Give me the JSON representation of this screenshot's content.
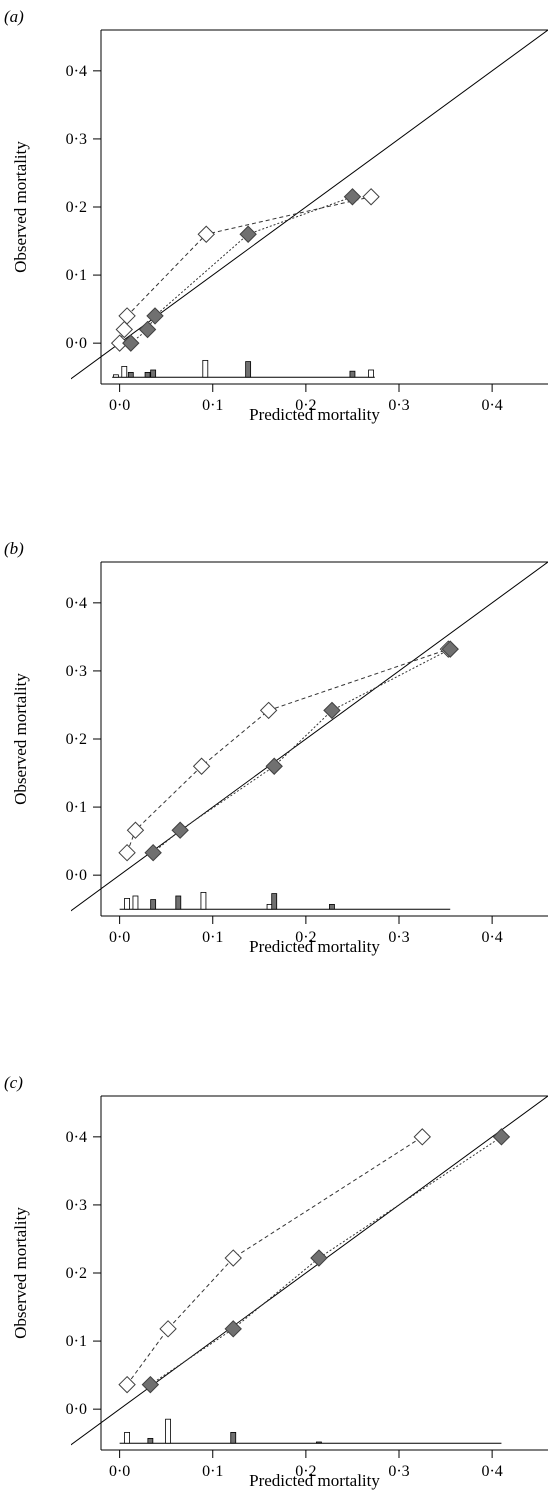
{
  "figure": {
    "x_axis_title": "Predicted mortality",
    "y_axis_title": "Observed mortality"
  },
  "colors": {
    "filled_marker": "#707070",
    "open_marker": "#ffffff",
    "marker_stroke": "#404040",
    "hist_filled": "#707070",
    "hist_open": "#ffffff",
    "line": "#000000"
  },
  "chart_data": [
    {
      "type": "scatter",
      "panel_label": "(a)",
      "xlabel": "Predicted mortality",
      "ylabel": "Observed mortality",
      "xlim": [
        -0.02,
        0.46
      ],
      "ylim": [
        -0.06,
        0.46
      ],
      "x_ticks": [
        "0·0",
        "0·1",
        "0·2",
        "0·3",
        "0·4"
      ],
      "y_ticks": [
        "0·0",
        "0·1",
        "0·2",
        "0·3",
        "0·4"
      ],
      "reference_line": "y = x",
      "series": [
        {
          "marker": "open diamond",
          "line": "dashed",
          "x": [
            0.0,
            0.005,
            0.008,
            0.093,
            0.27
          ],
          "y": [
            0.0,
            0.02,
            0.04,
            0.16,
            0.215
          ]
        },
        {
          "marker": "filled diamond",
          "line": "dotted",
          "x": [
            0.012,
            0.03,
            0.038,
            0.138,
            0.25
          ],
          "y": [
            0.0,
            0.02,
            0.04,
            0.16,
            0.215
          ]
        }
      ],
      "histogram": {
        "baseline_x": [
          -0.008,
          0.274
        ],
        "bars": [
          {
            "x": -0.004,
            "h": 0.1,
            "fill": "open"
          },
          {
            "x": 0.005,
            "h": 0.45,
            "fill": "open"
          },
          {
            "x": 0.012,
            "h": 0.2,
            "fill": "filled"
          },
          {
            "x": 0.03,
            "h": 0.2,
            "fill": "filled"
          },
          {
            "x": 0.036,
            "h": 0.3,
            "fill": "filled"
          },
          {
            "x": 0.092,
            "h": 0.7,
            "fill": "open"
          },
          {
            "x": 0.138,
            "h": 0.65,
            "fill": "filled"
          },
          {
            "x": 0.25,
            "h": 0.25,
            "fill": "filled"
          },
          {
            "x": 0.27,
            "h": 0.3,
            "fill": "open"
          }
        ]
      }
    },
    {
      "type": "scatter",
      "panel_label": "(b)",
      "xlabel": "Predicted mortality",
      "ylabel": "Observed mortality",
      "xlim": [
        -0.02,
        0.46
      ],
      "ylim": [
        -0.06,
        0.46
      ],
      "x_ticks": [
        "0·0",
        "0·1",
        "0·2",
        "0·3",
        "0·4"
      ],
      "y_ticks": [
        "0·0",
        "0·1",
        "0·2",
        "0·3",
        "0·4"
      ],
      "reference_line": "y = x",
      "series": [
        {
          "marker": "open diamond",
          "line": "dashed",
          "x": [
            0.008,
            0.017,
            0.088,
            0.16,
            0.353
          ],
          "y": [
            0.033,
            0.066,
            0.16,
            0.242,
            0.332
          ]
        },
        {
          "marker": "filled diamond",
          "line": "dotted",
          "x": [
            0.036,
            0.065,
            0.166,
            0.228,
            0.355
          ],
          "y": [
            0.033,
            0.066,
            0.16,
            0.242,
            0.332
          ]
        }
      ],
      "histogram": {
        "baseline_x": [
          0.0,
          0.355
        ],
        "bars": [
          {
            "x": 0.008,
            "h": 0.45,
            "fill": "open"
          },
          {
            "x": 0.017,
            "h": 0.55,
            "fill": "open"
          },
          {
            "x": 0.036,
            "h": 0.4,
            "fill": "filled"
          },
          {
            "x": 0.063,
            "h": 0.55,
            "fill": "filled"
          },
          {
            "x": 0.09,
            "h": 0.7,
            "fill": "open"
          },
          {
            "x": 0.161,
            "h": 0.2,
            "fill": "open"
          },
          {
            "x": 0.166,
            "h": 0.65,
            "fill": "filled"
          },
          {
            "x": 0.228,
            "h": 0.2,
            "fill": "filled"
          }
        ]
      }
    },
    {
      "type": "scatter",
      "panel_label": "(c)",
      "xlabel": "Predicted mortality",
      "ylabel": "Observed mortality",
      "xlim": [
        -0.02,
        0.46
      ],
      "ylim": [
        -0.06,
        0.46
      ],
      "x_ticks": [
        "0·0",
        "0·1",
        "0·2",
        "0·3",
        "0·4"
      ],
      "y_ticks": [
        "0·0",
        "0·1",
        "0·2",
        "0·3",
        "0·4"
      ],
      "reference_line": "y = x",
      "series": [
        {
          "marker": "open diamond",
          "line": "dashed",
          "x": [
            0.008,
            0.052,
            0.122,
            0.325
          ],
          "y": [
            0.036,
            0.118,
            0.222,
            0.4
          ]
        },
        {
          "marker": "filled diamond",
          "line": "dotted",
          "x": [
            0.033,
            0.122,
            0.214,
            0.41
          ],
          "y": [
            0.036,
            0.118,
            0.222,
            0.4
          ]
        }
      ],
      "histogram": {
        "baseline_x": [
          0.0,
          0.41
        ],
        "bars": [
          {
            "x": 0.008,
            "h": 0.45,
            "fill": "open"
          },
          {
            "x": 0.033,
            "h": 0.2,
            "fill": "filled"
          },
          {
            "x": 0.052,
            "h": 1.0,
            "fill": "open"
          },
          {
            "x": 0.122,
            "h": 0.45,
            "fill": "filled"
          },
          {
            "x": 0.214,
            "h": 0.05,
            "fill": "filled"
          }
        ]
      }
    }
  ]
}
